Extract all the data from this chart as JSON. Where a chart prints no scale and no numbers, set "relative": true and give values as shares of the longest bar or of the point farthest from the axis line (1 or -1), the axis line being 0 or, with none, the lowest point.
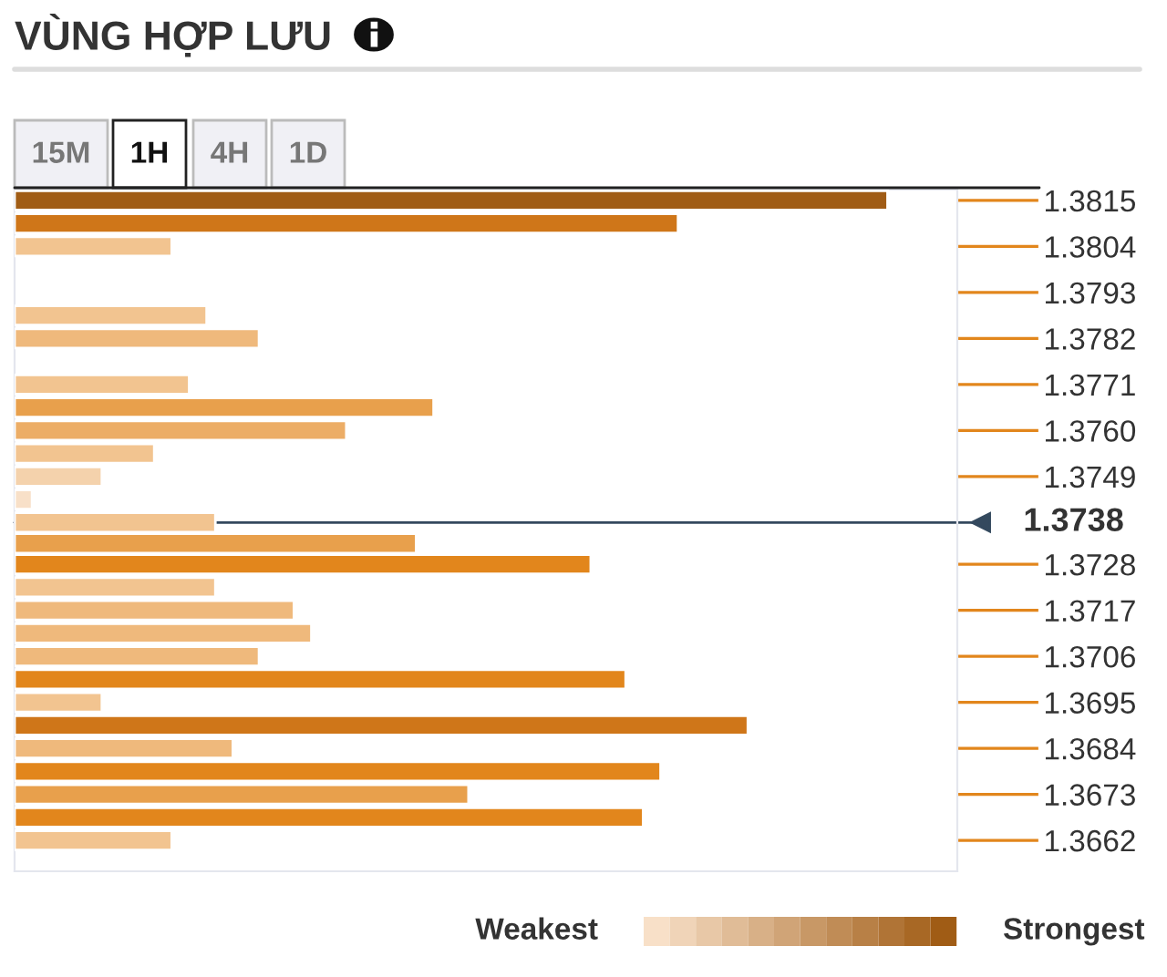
{
  "chart_data": {
    "type": "bar",
    "orientation": "horizontal",
    "relative": true,
    "title": "VÙNG HỢP LƯU",
    "x": [
      1.3815,
      1.38095,
      1.3804,
      1.37875,
      1.3782,
      1.3771,
      1.37655,
      1.376,
      1.37545,
      1.3749,
      1.37435,
      1.3738,
      1.3733,
      1.3728,
      1.37225,
      1.3717,
      1.37115,
      1.3706,
      1.37005,
      1.3695,
      1.36895,
      1.3684,
      1.36785,
      1.3673,
      1.36675,
      1.3662
    ],
    "values": [
      1,
      0.76,
      0.18,
      0.22,
      0.28,
      0.2,
      0.48,
      0.38,
      0.16,
      0.1,
      0.02,
      0.23,
      0.46,
      0.66,
      0.23,
      0.32,
      0.34,
      0.28,
      0.7,
      0.1,
      0.84,
      0.25,
      0.74,
      0.52,
      0.72,
      0.18
    ],
    "colors": [
      "#a05c15",
      "#cf7619",
      "#f2c490",
      "#f2c490",
      "#efb97c",
      "#f2c490",
      "#e8a04c",
      "#ecad66",
      "#f2c490",
      "#f4d2ac",
      "#f8e0c8",
      "#f2c490",
      "#e8a04c",
      "#e2861c",
      "#f2c490",
      "#efb97c",
      "#efb97c",
      "#efb97c",
      "#e2861c",
      "#f2c490",
      "#cf7619",
      "#efb97c",
      "#e2861c",
      "#e8a04c",
      "#e2861c",
      "#f2c490"
    ],
    "ylim": [
      1.36546,
      1.38176
    ],
    "yticks": [
      1.3815,
      1.3804,
      1.3793,
      1.3782,
      1.3771,
      {
        "value": 1.376,
        "label": "1.3760"
      },
      1.3749,
      1.3728,
      1.3717,
      1.3706,
      1.3695,
      1.3684,
      1.3673,
      1.3662
    ],
    "ref_lines": [
      {
        "axis": "y",
        "value": 1.3738,
        "label": "1.3738",
        "color": "#34495e"
      }
    ],
    "annotations": [
      "15M",
      "1H",
      "4H",
      "1D",
      "Weakest",
      "Strongest"
    ],
    "legend": false
  }
}
